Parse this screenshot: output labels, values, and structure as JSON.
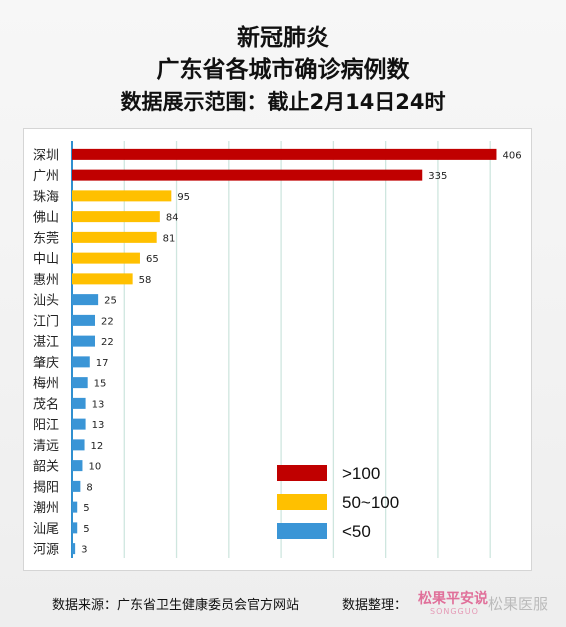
{
  "title": {
    "line1": "新冠肺炎",
    "line2": "广东省各城市确诊病例数",
    "line3": "数据展示范围：截止2月14日24时"
  },
  "chart_data": {
    "type": "bar",
    "orientation": "horizontal",
    "categories": [
      "深圳",
      "广州",
      "珠海",
      "佛山",
      "东莞",
      "中山",
      "惠州",
      "汕头",
      "江门",
      "湛江",
      "肇庆",
      "梅州",
      "茂名",
      "阳江",
      "清远",
      "韶关",
      "揭阳",
      "潮州",
      "汕尾",
      "河源"
    ],
    "values": [
      406,
      335,
      95,
      84,
      81,
      65,
      58,
      25,
      22,
      22,
      17,
      15,
      13,
      13,
      12,
      10,
      8,
      5,
      5,
      3
    ],
    "xlim": [
      0,
      450
    ],
    "grid": true,
    "legend_position": "bottom-right",
    "legend": [
      {
        "label": ">100",
        "color": "#c00000"
      },
      {
        "label": "50~100",
        "color": "#ffc000"
      },
      {
        "label": "<50",
        "color": "#3a95d6"
      }
    ],
    "colors": {
      "high": "#c00000",
      "mid": "#ffc000",
      "low": "#3a95d6",
      "grid": "#cfe6df",
      "axis": "#2f8fcf"
    }
  },
  "footer": {
    "source": "数据来源：广东省卫生健康委员会官方网站",
    "compiler": "数据整理：",
    "logo": "松果平安说",
    "logo_sub": "SONGGUO",
    "brand": "松果医服"
  }
}
